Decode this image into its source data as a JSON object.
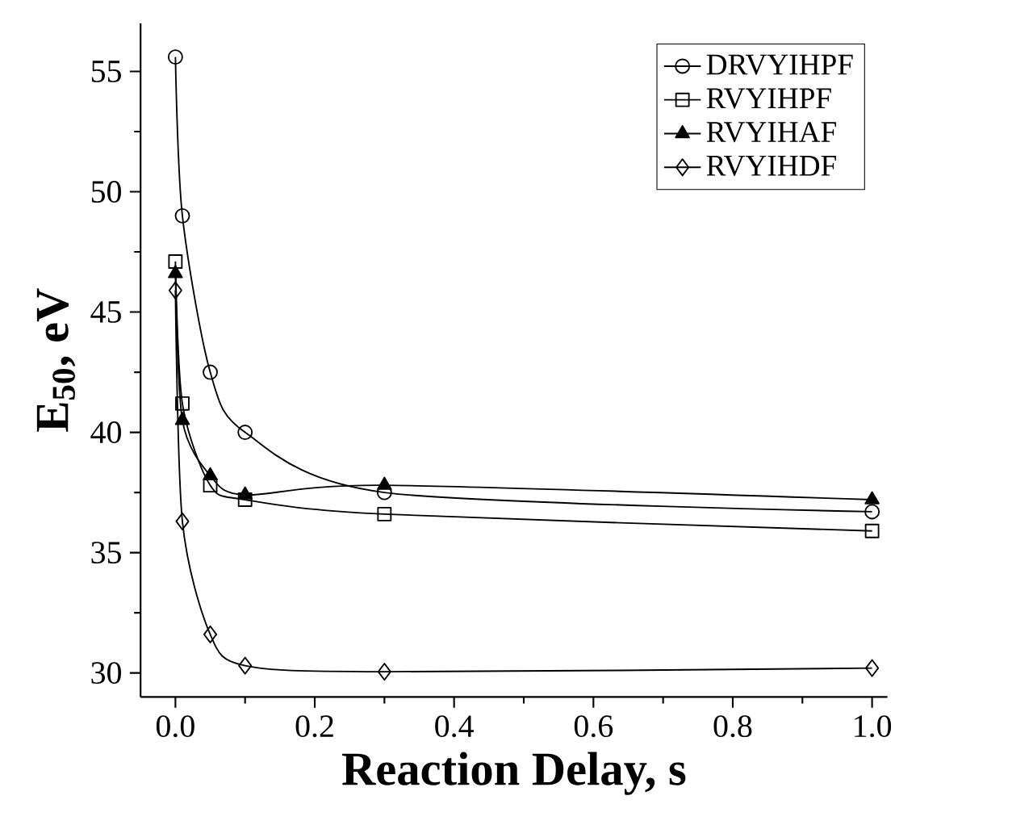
{
  "chart_data": {
    "type": "line",
    "xlabel": "Reaction Delay, s",
    "ylabel": "E$_{50}$, eV",
    "xlim": [
      -0.05,
      1.022
    ],
    "ylim": [
      29,
      57
    ],
    "xticks": [
      {
        "value": 0,
        "label": "0.0"
      },
      {
        "value": 0.2,
        "label": "0.2"
      },
      {
        "value": 0.4,
        "label": "0.4"
      },
      {
        "value": 0.6,
        "label": "0.6"
      },
      {
        "value": 0.8,
        "label": "0.8"
      },
      {
        "value": 1,
        "label": "1.0"
      }
    ],
    "yticks": [
      30,
      35,
      40,
      45,
      50,
      55
    ],
    "legend": "top right",
    "grid": false,
    "line_style": "solid",
    "series": [
      {
        "name": "DRVYIHPF",
        "color": "#000000",
        "marker": "circle",
        "x": [
          0,
          0.01,
          0.05,
          0.1,
          0.3,
          1.0
        ],
        "values": [
          55.6,
          49.0,
          42.5,
          40.0,
          37.5,
          36.7
        ]
      },
      {
        "name": "RVYIHPF",
        "color": "#000000",
        "marker": "square",
        "x": [
          0,
          0.01,
          0.05,
          0.1,
          0.3,
          1.0
        ],
        "values": [
          47.1,
          41.2,
          37.8,
          37.2,
          36.6,
          35.9
        ]
      },
      {
        "name": "RVYIHAF",
        "color": "#000000",
        "marker": "triangle",
        "x": [
          0,
          0.01,
          0.05,
          0.1,
          0.3,
          1.0
        ],
        "values": [
          46.6,
          40.5,
          38.2,
          37.4,
          37.8,
          37.2
        ]
      },
      {
        "name": "RVYIHDF",
        "color": "#000000",
        "marker": "diamond",
        "x": [
          0,
          0.01,
          0.05,
          0.1,
          0.3,
          1.0
        ],
        "values": [
          45.9,
          36.3,
          31.6,
          30.3,
          30.05,
          30.2
        ]
      }
    ]
  }
}
